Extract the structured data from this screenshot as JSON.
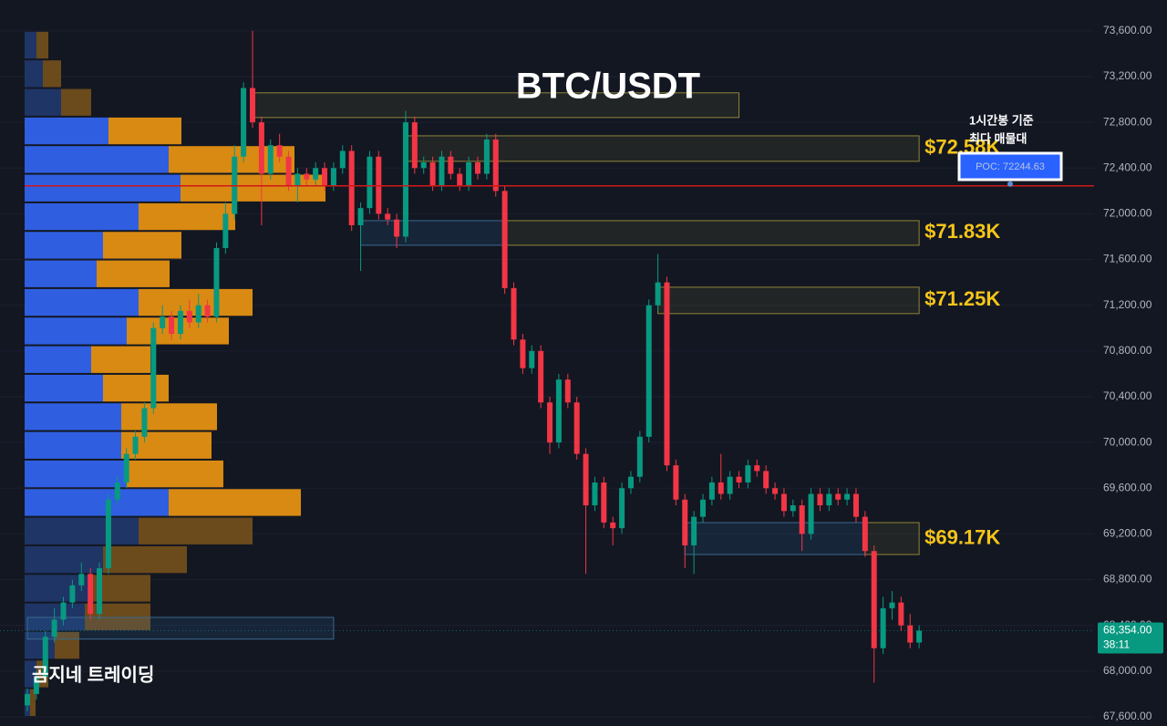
{
  "chart_data": {
    "type": "candlestick",
    "title": "BTC/USDT",
    "watermark": "곰지네 트레이딩",
    "annotation": [
      "1시간봉 기준",
      "최다 매물대"
    ],
    "ylim": [
      67520,
      73870
    ],
    "yticks": [
      {
        "value": 67600,
        "label": "67,600.00"
      },
      {
        "value": 68000,
        "label": "68,000.00"
      },
      {
        "value": 68400,
        "label": "68,400.00"
      },
      {
        "value": 68800,
        "label": "68,800.00"
      },
      {
        "value": 69200,
        "label": "69,200.00"
      },
      {
        "value": 69600,
        "label": "69,600.00"
      },
      {
        "value": 70000,
        "label": "70,000.00"
      },
      {
        "value": 70400,
        "label": "70,400.00"
      },
      {
        "value": 70800,
        "label": "70,800.00"
      },
      {
        "value": 71200,
        "label": "71,200.00"
      },
      {
        "value": 71600,
        "label": "71,600.00"
      },
      {
        "value": 72000,
        "label": "72,000.00"
      },
      {
        "value": 72400,
        "label": "72,400.00"
      },
      {
        "value": 72800,
        "label": "72,800.00"
      },
      {
        "value": 73200,
        "label": "73,200.00"
      },
      {
        "value": 73600,
        "label": "73,600.00"
      }
    ],
    "grid": true,
    "up_color": "#089981",
    "down_color": "#f23645",
    "candles": [
      [
        67700,
        67850,
        67650,
        67800
      ],
      [
        67800,
        68000,
        67750,
        67950
      ],
      [
        67950,
        68350,
        67900,
        68300
      ],
      [
        68300,
        68550,
        68250,
        68450
      ],
      [
        68450,
        68650,
        68400,
        68600
      ],
      [
        68600,
        68800,
        68550,
        68750
      ],
      [
        68750,
        68950,
        68700,
        68850
      ],
      [
        68850,
        68900,
        68450,
        68500
      ],
      [
        68500,
        68950,
        68450,
        68900
      ],
      [
        68900,
        69550,
        68850,
        69500
      ],
      [
        69500,
        69700,
        69450,
        69650
      ],
      [
        69650,
        69950,
        69600,
        69900
      ],
      [
        69900,
        70100,
        69850,
        70050
      ],
      [
        70050,
        70350,
        70000,
        70300
      ],
      [
        70300,
        71050,
        70250,
        71000
      ],
      [
        71000,
        71200,
        70950,
        71100
      ],
      [
        71100,
        71150,
        70900,
        70950
      ],
      [
        70950,
        71200,
        70900,
        71150
      ],
      [
        71150,
        71250,
        71000,
        71050
      ],
      [
        71050,
        71300,
        71000,
        71200
      ],
      [
        71200,
        71250,
        71050,
        71100
      ],
      [
        71100,
        71750,
        71050,
        71700
      ],
      [
        71700,
        72100,
        71650,
        72000
      ],
      [
        72000,
        72600,
        71950,
        72500
      ],
      [
        72500,
        73150,
        72450,
        73100
      ],
      [
        73100,
        73600,
        72750,
        72800
      ],
      [
        72800,
        72850,
        71900,
        72350
      ],
      [
        72350,
        72650,
        72300,
        72600
      ],
      [
        72600,
        72700,
        72450,
        72500
      ],
      [
        72500,
        72550,
        72200,
        72250
      ],
      [
        72250,
        72400,
        72100,
        72350
      ],
      [
        72350,
        72400,
        72250,
        72300
      ],
      [
        72300,
        72450,
        72250,
        72400
      ],
      [
        72400,
        72450,
        72200,
        72250
      ],
      [
        72250,
        72450,
        72200,
        72400
      ],
      [
        72400,
        72600,
        72350,
        72550
      ],
      [
        72550,
        72600,
        71850,
        71900
      ],
      [
        71900,
        72100,
        71500,
        72050
      ],
      [
        72050,
        72550,
        72000,
        72500
      ],
      [
        72500,
        72550,
        71950,
        72000
      ],
      [
        72000,
        72050,
        71900,
        71950
      ],
      [
        71950,
        72000,
        71700,
        71800
      ],
      [
        71800,
        72900,
        71750,
        72800
      ],
      [
        72800,
        72850,
        72350,
        72400
      ],
      [
        72400,
        72500,
        72350,
        72450
      ],
      [
        72450,
        72500,
        72200,
        72250
      ],
      [
        72250,
        72550,
        72200,
        72500
      ],
      [
        72500,
        72550,
        72300,
        72350
      ],
      [
        72350,
        72400,
        72200,
        72250
      ],
      [
        72250,
        72500,
        72200,
        72450
      ],
      [
        72450,
        72500,
        72300,
        72350
      ],
      [
        72350,
        72700,
        72300,
        72650
      ],
      [
        72650,
        72700,
        72150,
        72200
      ],
      [
        72200,
        72250,
        71300,
        71350
      ],
      [
        71350,
        71400,
        70850,
        70900
      ],
      [
        70900,
        70950,
        70600,
        70650
      ],
      [
        70650,
        70850,
        70600,
        70800
      ],
      [
        70800,
        70850,
        70300,
        70350
      ],
      [
        70350,
        70400,
        69900,
        70000
      ],
      [
        70000,
        70600,
        69950,
        70550
      ],
      [
        70550,
        70600,
        70300,
        70350
      ],
      [
        70350,
        70400,
        69850,
        69900
      ],
      [
        69900,
        69950,
        68850,
        69450
      ],
      [
        69450,
        69700,
        69400,
        69650
      ],
      [
        69650,
        69700,
        69250,
        69300
      ],
      [
        69300,
        69350,
        69100,
        69250
      ],
      [
        69250,
        69650,
        69200,
        69600
      ],
      [
        69600,
        69750,
        69550,
        69700
      ],
      [
        69700,
        70100,
        69650,
        70050
      ],
      [
        70050,
        71250,
        70000,
        71200
      ],
      [
        71200,
        71650,
        71150,
        71400
      ],
      [
        71400,
        71450,
        69750,
        69800
      ],
      [
        69800,
        69850,
        69450,
        69500
      ],
      [
        69500,
        69550,
        68900,
        69100
      ],
      [
        69100,
        69400,
        68850,
        69350
      ],
      [
        69350,
        69550,
        69300,
        69500
      ],
      [
        69500,
        69700,
        69450,
        69650
      ],
      [
        69650,
        69900,
        69500,
        69550
      ],
      [
        69550,
        69750,
        69500,
        69700
      ],
      [
        69700,
        69750,
        69600,
        69650
      ],
      [
        69650,
        69850,
        69600,
        69800
      ],
      [
        69800,
        69850,
        69700,
        69750
      ],
      [
        69750,
        69800,
        69550,
        69600
      ],
      [
        69600,
        69650,
        69500,
        69550
      ],
      [
        69550,
        69600,
        69350,
        69400
      ],
      [
        69400,
        69500,
        69350,
        69450
      ],
      [
        69450,
        69500,
        69050,
        69200
      ],
      [
        69200,
        69600,
        69150,
        69550
      ],
      [
        69550,
        69600,
        69400,
        69450
      ],
      [
        69450,
        69600,
        69400,
        69550
      ],
      [
        69550,
        69600,
        69450,
        69500
      ],
      [
        69500,
        69600,
        69450,
        69550
      ],
      [
        69550,
        69600,
        69300,
        69350
      ],
      [
        69350,
        69400,
        69000,
        69050
      ],
      [
        69050,
        69100,
        67900,
        68200
      ],
      [
        68200,
        68650,
        68150,
        68550
      ],
      [
        68550,
        68700,
        68450,
        68600
      ],
      [
        68600,
        68650,
        68350,
        68400
      ],
      [
        68400,
        68500,
        68200,
        68250
      ],
      [
        68250,
        68400,
        68200,
        68354
      ]
    ],
    "volume_profile": {
      "buy_color": "#2f5fe0",
      "sell_color": "#d98a12",
      "outer_buy_color": "#1e3566",
      "outer_sell_color": "#6b4a1c",
      "value_area": [
        69350,
        72850
      ],
      "rows": [
        {
          "low": 73350,
          "high": 73600,
          "buy": 13,
          "sell": 13
        },
        {
          "low": 73100,
          "high": 73350,
          "buy": 20,
          "sell": 20
        },
        {
          "low": 72850,
          "high": 73100,
          "buy": 40,
          "sell": 33
        },
        {
          "low": 72600,
          "high": 72850,
          "buy": 92,
          "sell": 80
        },
        {
          "low": 72350,
          "high": 72600,
          "buy": 158,
          "sell": 138
        },
        {
          "low": 72100,
          "high": 72350,
          "buy": 171,
          "sell": 159
        },
        {
          "low": 71850,
          "high": 72100,
          "buy": 125,
          "sell": 106
        },
        {
          "low": 71600,
          "high": 71850,
          "buy": 86,
          "sell": 86
        },
        {
          "low": 71350,
          "high": 71600,
          "buy": 79,
          "sell": 80
        },
        {
          "low": 71100,
          "high": 71350,
          "buy": 125,
          "sell": 125
        },
        {
          "low": 70850,
          "high": 71100,
          "buy": 112,
          "sell": 112
        },
        {
          "low": 70600,
          "high": 70850,
          "buy": 73,
          "sell": 65
        },
        {
          "low": 70350,
          "high": 70600,
          "buy": 86,
          "sell": 72
        },
        {
          "low": 70100,
          "high": 70350,
          "buy": 106,
          "sell": 105
        },
        {
          "low": 69850,
          "high": 70100,
          "buy": 106,
          "sell": 99
        },
        {
          "low": 69600,
          "high": 69850,
          "buy": 112,
          "sell": 106
        },
        {
          "low": 69350,
          "high": 69600,
          "buy": 158,
          "sell": 145
        },
        {
          "low": 69100,
          "high": 69350,
          "buy": 125,
          "sell": 125
        },
        {
          "low": 68850,
          "high": 69100,
          "buy": 86,
          "sell": 92
        },
        {
          "low": 68600,
          "high": 68850,
          "buy": 73,
          "sell": 65
        },
        {
          "low": 68350,
          "high": 68600,
          "buy": 66,
          "sell": 72
        },
        {
          "low": 68100,
          "high": 68350,
          "buy": 33,
          "sell": 27
        },
        {
          "low": 67850,
          "high": 68100,
          "buy": 13,
          "sell": 13
        },
        {
          "low": 67600,
          "high": 67850,
          "buy": 6,
          "sell": 6
        }
      ]
    },
    "zones": [
      {
        "top": 73058,
        "bottom": 72842,
        "start": 25,
        "end": 79,
        "color": "yellow"
      },
      {
        "top": 72682,
        "bottom": 72459,
        "start": 42,
        "end": 99,
        "color": "yellow",
        "label": "$72.58K"
      },
      {
        "top": 71940,
        "bottom": 71725,
        "start": 37,
        "end": 53,
        "color": "blue"
      },
      {
        "top": 71940,
        "bottom": 71725,
        "start": 53,
        "end": 99,
        "color": "yellow",
        "label": "$71.83K"
      },
      {
        "top": 71358,
        "bottom": 71127,
        "start": 70,
        "end": 99,
        "color": "yellow",
        "label": "$71.25K"
      },
      {
        "top": 69299,
        "bottom": 69020,
        "start": 73,
        "end": 93,
        "color": "blue"
      },
      {
        "top": 69299,
        "bottom": 69020,
        "start": 93,
        "end": 99,
        "color": "yellow",
        "label": "$69.17K"
      },
      {
        "top": 68470,
        "bottom": 68280,
        "start": 0,
        "end": 34,
        "color": "blue"
      }
    ],
    "poc": {
      "value": 72244.63,
      "label": "POC: 72244.63",
      "color": "#d01818"
    },
    "last": {
      "value": 68354,
      "label": "68,354.00",
      "timer": "38:11"
    }
  }
}
